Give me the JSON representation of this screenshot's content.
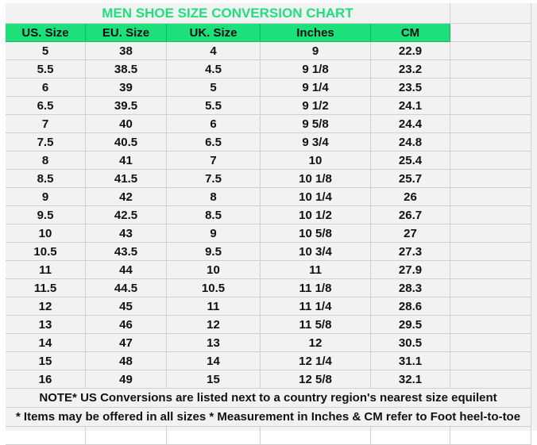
{
  "title": "MEN SHOE SIZE CONVERSION CHART",
  "headers": [
    "US. Size",
    "EU. Size",
    "UK. Size",
    "Inches",
    "CM"
  ],
  "rows": [
    [
      "5",
      "38",
      "4",
      "9",
      "22.9"
    ],
    [
      "5.5",
      "38.5",
      "4.5",
      "9 1/8",
      "23.2"
    ],
    [
      "6",
      "39",
      "5",
      "9 1/4",
      "23.5"
    ],
    [
      "6.5",
      "39.5",
      "5.5",
      "9 1/2",
      "24.1"
    ],
    [
      "7",
      "40",
      "6",
      "9 5/8",
      "24.4"
    ],
    [
      "7.5",
      "40.5",
      "6.5",
      "9 3/4",
      "24.8"
    ],
    [
      "8",
      "41",
      "7",
      "10",
      "25.4"
    ],
    [
      "8.5",
      "41.5",
      "7.5",
      "10 1/8",
      "25.7"
    ],
    [
      "9",
      "42",
      "8",
      "10 1/4",
      "26"
    ],
    [
      "9.5",
      "42.5",
      "8.5",
      "10 1/2",
      "26.7"
    ],
    [
      "10",
      "43",
      "9",
      "10 5/8",
      "27"
    ],
    [
      "10.5",
      "43.5",
      "9.5",
      "10 3/4",
      "27.3"
    ],
    [
      "11",
      "44",
      "10",
      "11",
      "27.9"
    ],
    [
      "11.5",
      "44.5",
      "10.5",
      "11 1/8",
      "28.3"
    ],
    [
      "12",
      "45",
      "11",
      "11 1/4",
      "28.6"
    ],
    [
      "13",
      "46",
      "12",
      "11 5/8",
      "29.5"
    ],
    [
      "14",
      "47",
      "13",
      "12",
      "30.5"
    ],
    [
      "15",
      "48",
      "14",
      "12 1/4",
      "31.1"
    ],
    [
      "16",
      "49",
      "15",
      "12 5/8",
      "32.1"
    ]
  ],
  "notes": [
    "NOTE* US Conversions are listed next to a country region's nearest size equilent",
    "* Items may be offered in all sizes * Measurement in Inches & CM refer to Foot heel-to-toe"
  ],
  "colors": {
    "accent": "#1ee07a",
    "background": "#f2f2f2"
  }
}
